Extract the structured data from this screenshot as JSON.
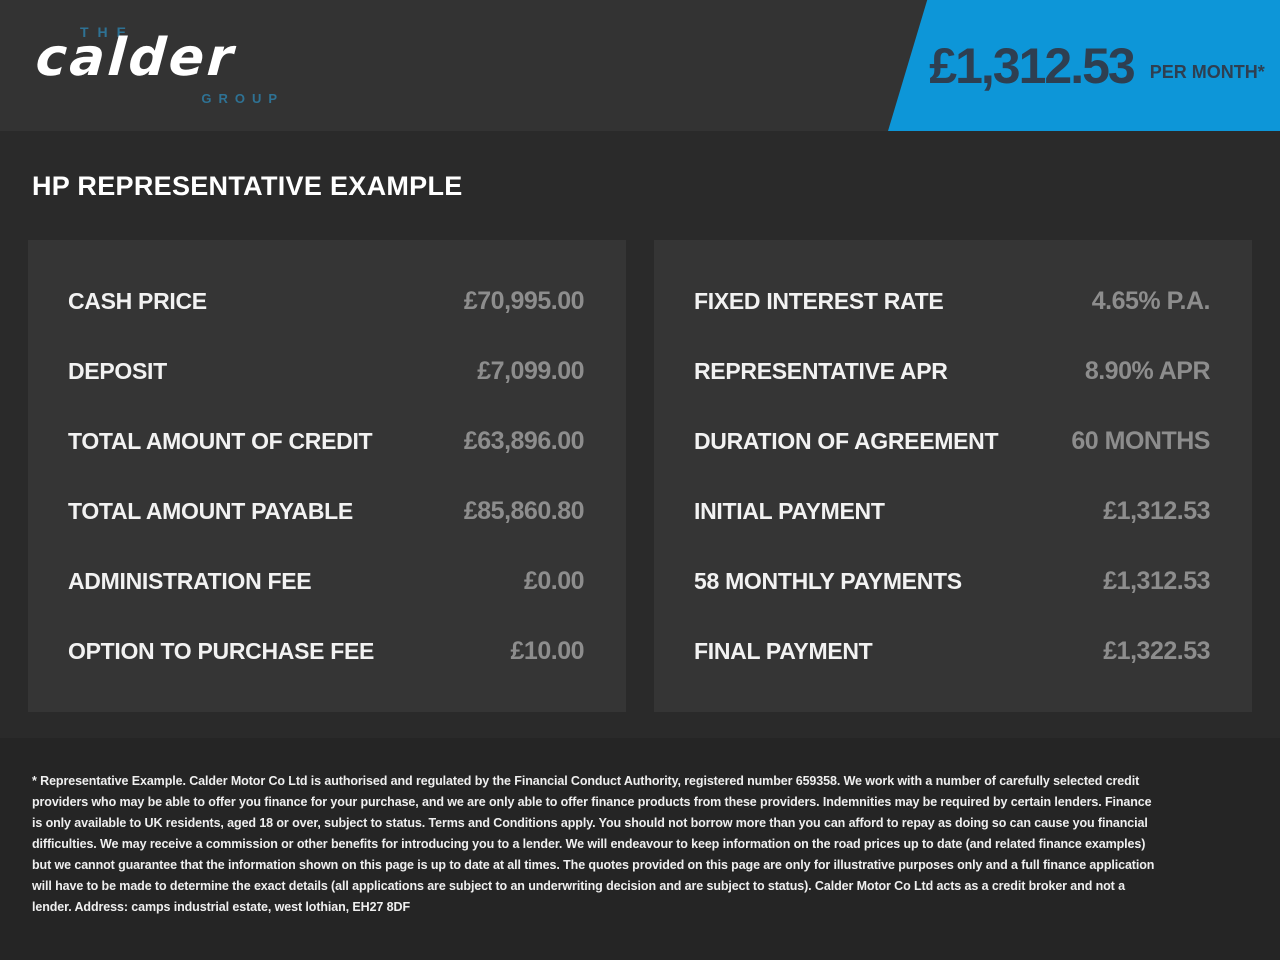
{
  "colors": {
    "accent_blue": "#0d96d8",
    "banner_text": "#2e3f51",
    "header_bg": "#333333",
    "body_bg": "#2a2a2a",
    "panel_bg": "#353535",
    "footer_bg": "#252525",
    "label_text": "#f2f2f2",
    "value_text": "#8d8d8d",
    "logo_accent_blue": "#2e7294"
  },
  "header": {
    "logo": {
      "line1": "THE",
      "line2": "calder",
      "line3": "GROUP"
    },
    "banner": {
      "amount": "£1,312.53",
      "period": "PER MONTH*"
    }
  },
  "title": "HP REPRESENTATIVE EXAMPLE",
  "left_panel": {
    "rows": [
      {
        "label": "CASH PRICE",
        "value": "£70,995.00"
      },
      {
        "label": "DEPOSIT",
        "value": "£7,099.00"
      },
      {
        "label": "TOTAL AMOUNT OF CREDIT",
        "value": "£63,896.00"
      },
      {
        "label": "TOTAL AMOUNT PAYABLE",
        "value": "£85,860.80"
      },
      {
        "label": "ADMINISTRATION FEE",
        "value": "£0.00"
      },
      {
        "label": "OPTION TO PURCHASE FEE",
        "value": "£10.00"
      }
    ]
  },
  "right_panel": {
    "rows": [
      {
        "label": "FIXED INTEREST RATE",
        "value": "4.65% P.A."
      },
      {
        "label": "REPRESENTATIVE APR",
        "value": "8.90% APR"
      },
      {
        "label": "DURATION OF AGREEMENT",
        "value": "60 MONTHS"
      },
      {
        "label": "INITIAL PAYMENT",
        "value": "£1,312.53"
      },
      {
        "label": "58 MONTHLY PAYMENTS",
        "value": "£1,312.53"
      },
      {
        "label": "FINAL PAYMENT",
        "value": "£1,322.53"
      }
    ]
  },
  "footer": {
    "disclaimer": "* Representative Example. Calder Motor Co Ltd is authorised and regulated by the Financial Conduct Authority, registered number 659358. We work with a number of carefully selected credit providers who may be able to offer you finance for your purchase, and we are only able to offer finance products from these providers. Indemnities may be required by certain lenders. Finance is only available to UK residents, aged 18 or over, subject to status. Terms and Conditions apply. You should not borrow more than you can afford to repay as doing so can cause you financial difficulties. We may receive a commission or other benefits for introducing you to a lender. We will endeavour to keep information on the road prices up to date (and related finance examples) but we cannot guarantee that the information shown on this page is up to date at all times. The quotes provided on this page are only for illustrative purposes only and a full finance application will have to be made to determine the exact details (all applications are subject to an underwriting decision and are subject to status). Calder Motor Co Ltd acts as a credit broker and not a lender. Address: camps industrial estate, west lothian, EH27 8DF"
  }
}
